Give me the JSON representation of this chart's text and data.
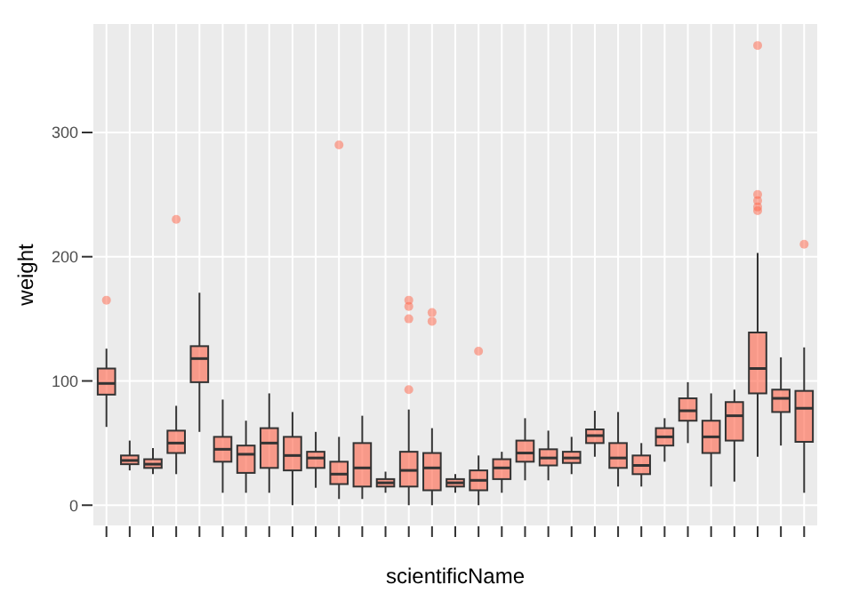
{
  "chart_data": {
    "type": "box",
    "xlabel": "scientificName",
    "ylabel": "weight",
    "categories": [
      null,
      null,
      null,
      null,
      null,
      null,
      null,
      null,
      null,
      null,
      null,
      null,
      null,
      null,
      null,
      null,
      null,
      null,
      null,
      null,
      null,
      null,
      null,
      null,
      null,
      null,
      null,
      null,
      null,
      null,
      null
    ],
    "color": "#ff6347",
    "ylim": [
      -17,
      388
    ],
    "yticks": [
      0,
      100,
      200,
      300
    ],
    "grid": true,
    "legend": false,
    "boxes": [
      {
        "low": 63,
        "q1": 89,
        "median": 98,
        "q3": 110,
        "high": 126,
        "outliers": [
          165
        ]
      },
      {
        "low": 28,
        "q1": 33,
        "median": 36,
        "q3": 40,
        "high": 52
      },
      {
        "low": 25,
        "q1": 30,
        "median": 33,
        "q3": 37,
        "high": 46
      },
      {
        "low": 25,
        "q1": 42,
        "median": 50,
        "q3": 60,
        "high": 80,
        "outliers": [
          230
        ]
      },
      {
        "low": 59,
        "q1": 99,
        "median": 118,
        "q3": 128,
        "high": 171
      },
      {
        "low": 10,
        "q1": 35,
        "median": 45,
        "q3": 55,
        "high": 85
      },
      {
        "low": 10,
        "q1": 26,
        "median": 41,
        "q3": 48,
        "high": 68
      },
      {
        "low": 10,
        "q1": 30,
        "median": 50,
        "q3": 62,
        "high": 90
      },
      {
        "low": 0,
        "q1": 28,
        "median": 40,
        "q3": 55,
        "high": 75
      },
      {
        "low": 14,
        "q1": 30,
        "median": 38,
        "q3": 43,
        "high": 59
      },
      {
        "low": 5,
        "q1": 17,
        "median": 25,
        "q3": 35,
        "high": 55,
        "outliers": [
          290
        ]
      },
      {
        "low": 5,
        "q1": 15,
        "median": 30,
        "q3": 50,
        "high": 72
      },
      {
        "low": 10,
        "q1": 15,
        "median": 18,
        "q3": 21,
        "high": 27
      },
      {
        "low": 0,
        "q1": 15,
        "median": 28,
        "q3": 43,
        "high": 77,
        "outliers": [
          93,
          150,
          160,
          165
        ]
      },
      {
        "low": 0,
        "q1": 12,
        "median": 30,
        "q3": 42,
        "high": 62,
        "outliers": [
          148,
          155
        ]
      },
      {
        "low": 10,
        "q1": 15,
        "median": 18,
        "q3": 21,
        "high": 25
      },
      {
        "low": 0,
        "q1": 12,
        "median": 20,
        "q3": 28,
        "high": 40,
        "outliers": [
          124
        ]
      },
      {
        "low": 10,
        "q1": 21,
        "median": 30,
        "q3": 37,
        "high": 43
      },
      {
        "low": 20,
        "q1": 35,
        "median": 42,
        "q3": 52,
        "high": 70
      },
      {
        "low": 20,
        "q1": 32,
        "median": 38,
        "q3": 45,
        "high": 60
      },
      {
        "low": 25,
        "q1": 34,
        "median": 38,
        "q3": 43,
        "high": 55
      },
      {
        "low": 39,
        "q1": 50,
        "median": 56,
        "q3": 61,
        "high": 76
      },
      {
        "low": 15,
        "q1": 30,
        "median": 38,
        "q3": 50,
        "high": 75
      },
      {
        "low": 15,
        "q1": 25,
        "median": 32,
        "q3": 40,
        "high": 50
      },
      {
        "low": 35,
        "q1": 48,
        "median": 55,
        "q3": 62,
        "high": 70
      },
      {
        "low": 50,
        "q1": 68,
        "median": 76,
        "q3": 86,
        "high": 99
      },
      {
        "low": 15,
        "q1": 42,
        "median": 55,
        "q3": 68,
        "high": 90
      },
      {
        "low": 19,
        "q1": 52,
        "median": 72,
        "q3": 83,
        "high": 93
      },
      {
        "low": 39,
        "q1": 90,
        "median": 110,
        "q3": 139,
        "high": 203,
        "outliers": [
          237,
          240,
          245,
          250,
          370
        ]
      },
      {
        "low": 48,
        "q1": 75,
        "median": 86,
        "q3": 93,
        "high": 119
      },
      {
        "low": 10,
        "q1": 51,
        "median": 78,
        "q3": 92,
        "high": 127,
        "outliers": [
          210
        ]
      }
    ]
  }
}
